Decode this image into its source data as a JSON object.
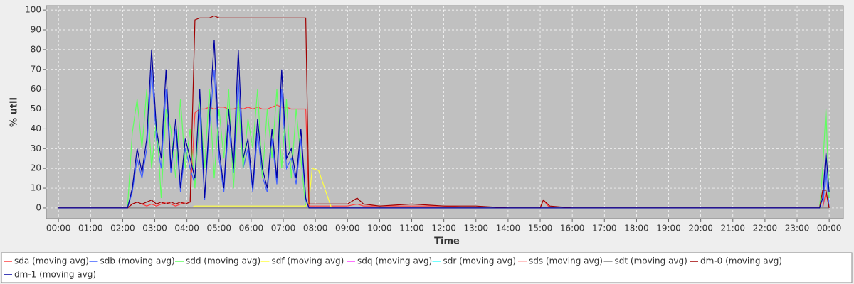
{
  "chart_data": {
    "type": "line",
    "xlabel": "Time",
    "ylabel": "% util",
    "grid": true,
    "legend": "bottom",
    "background": "#c0c0c0",
    "xlim": [
      -0.38,
      24.44
    ],
    "ylim": [
      -5.4,
      102.2
    ],
    "xticks": [
      {
        "value": 0,
        "label": "00:00"
      },
      {
        "value": 1,
        "label": "01:00"
      },
      {
        "value": 2,
        "label": "02:00"
      },
      {
        "value": 3,
        "label": "03:00"
      },
      {
        "value": 4,
        "label": "04:00"
      },
      {
        "value": 5,
        "label": "05:00"
      },
      {
        "value": 6,
        "label": "06:00"
      },
      {
        "value": 7,
        "label": "07:00"
      },
      {
        "value": 8,
        "label": "08:00"
      },
      {
        "value": 9,
        "label": "09:00"
      },
      {
        "value": 10,
        "label": "10:00"
      },
      {
        "value": 11,
        "label": "11:00"
      },
      {
        "value": 12,
        "label": "12:00"
      },
      {
        "value": 13,
        "label": "13:00"
      },
      {
        "value": 14,
        "label": "14:00"
      },
      {
        "value": 15,
        "label": "15:00"
      },
      {
        "value": 16,
        "label": "16:00"
      },
      {
        "value": 17,
        "label": "17:00"
      },
      {
        "value": 18,
        "label": "18:00"
      },
      {
        "value": 19,
        "label": "19:00"
      },
      {
        "value": 20,
        "label": "20:00"
      },
      {
        "value": 21,
        "label": "21:00"
      },
      {
        "value": 22,
        "label": "22:00"
      },
      {
        "value": 23,
        "label": "23:00"
      },
      {
        "value": 24,
        "label": "00:00"
      }
    ],
    "yticks": [
      0,
      10,
      20,
      30,
      40,
      50,
      60,
      70,
      80,
      90,
      100
    ],
    "x": [
      0,
      1,
      2,
      2.15,
      2.3,
      2.45,
      2.6,
      2.75,
      2.9,
      3.05,
      3.2,
      3.35,
      3.5,
      3.65,
      3.8,
      3.95,
      4.1,
      4.25,
      4.4,
      4.55,
      4.7,
      4.85,
      5,
      5.15,
      5.3,
      5.45,
      5.6,
      5.75,
      5.9,
      6.05,
      6.2,
      6.35,
      6.5,
      6.65,
      6.8,
      6.95,
      7.1,
      7.25,
      7.4,
      7.55,
      7.7,
      7.8,
      7.9,
      8.1,
      8.5,
      9,
      9.3,
      9.5,
      10,
      11,
      12,
      13,
      14,
      15,
      15.1,
      15.3,
      16,
      17,
      18,
      19,
      20,
      21,
      22,
      23,
      23.7,
      23.8,
      23.9,
      24
    ],
    "series": [
      {
        "name": "sda (moving avg)",
        "color": "#ff4040",
        "values": [
          0,
          0,
          0,
          0,
          2,
          3,
          2,
          1,
          2,
          1,
          2,
          3,
          2,
          1,
          2,
          3,
          3,
          48,
          50,
          50,
          51,
          50,
          51,
          51,
          50,
          50,
          51,
          50,
          51,
          50,
          51,
          50,
          50,
          51,
          52,
          51,
          51,
          50,
          50,
          50,
          50,
          1,
          1,
          1,
          1,
          1,
          2,
          1,
          1,
          1,
          1,
          0,
          0,
          0,
          4,
          0,
          0,
          0,
          0,
          0,
          0,
          0,
          0,
          0,
          0,
          0,
          8,
          0
        ]
      },
      {
        "name": "sdb (moving avg)",
        "color": "#4060ff",
        "values": [
          0,
          0,
          0,
          0,
          8,
          25,
          15,
          30,
          70,
          35,
          20,
          60,
          18,
          40,
          8,
          30,
          20,
          12,
          50,
          4,
          40,
          70,
          25,
          8,
          42,
          18,
          65,
          20,
          30,
          8,
          38,
          16,
          8,
          35,
          12,
          60,
          20,
          25,
          12,
          35,
          4,
          0,
          0,
          0,
          0,
          0,
          0,
          0,
          0,
          0,
          0,
          0,
          0,
          0,
          0,
          0,
          0,
          0,
          0,
          0,
          0,
          0,
          0,
          0,
          0,
          0,
          20,
          0
        ]
      },
      {
        "name": "sdd (moving avg)",
        "color": "#60ff60",
        "values": [
          0,
          0,
          0,
          0,
          38,
          55,
          30,
          60,
          20,
          45,
          5,
          50,
          40,
          15,
          55,
          20,
          40,
          10,
          55,
          20,
          60,
          15,
          50,
          25,
          60,
          10,
          55,
          20,
          45,
          30,
          60,
          15,
          50,
          25,
          60,
          20,
          55,
          15,
          50,
          25,
          0,
          0,
          0,
          0,
          0,
          0,
          0,
          0,
          0,
          0,
          0,
          0,
          0,
          0,
          0,
          0,
          0,
          0,
          0,
          0,
          0,
          0,
          0,
          0,
          0,
          20,
          50,
          5
        ]
      },
      {
        "name": "sdf (moving avg)",
        "color": "#ffff40",
        "values": [
          0,
          0,
          0,
          0,
          0,
          0,
          0,
          0,
          0,
          0,
          0,
          0,
          0,
          0,
          0,
          0,
          0,
          1,
          1,
          1,
          1,
          1,
          1,
          1,
          1,
          1,
          1,
          1,
          1,
          1,
          1,
          1,
          1,
          1,
          1,
          1,
          1,
          1,
          1,
          1,
          1,
          3,
          20,
          19,
          0,
          0,
          0,
          0,
          0,
          0,
          0,
          0,
          0,
          0,
          0,
          0,
          0,
          0,
          0,
          0,
          0,
          0,
          0,
          0,
          0,
          0,
          0,
          0
        ]
      },
      {
        "name": "sdq (moving avg)",
        "color": "#ff40ff",
        "values": [
          0,
          0,
          0,
          0,
          0,
          0,
          0,
          0,
          0,
          0,
          0,
          0,
          0,
          0,
          0,
          0,
          0,
          0,
          0,
          0,
          0,
          0,
          0,
          0,
          0,
          0,
          0,
          0,
          0,
          0,
          0,
          0,
          0,
          0,
          0,
          0,
          0,
          0,
          0,
          0,
          0,
          0,
          0,
          0,
          0,
          0,
          0,
          0,
          0,
          0,
          0,
          0,
          0,
          0,
          0,
          0,
          0,
          0,
          0,
          0,
          0,
          0,
          0,
          0,
          0,
          0,
          0,
          0
        ]
      },
      {
        "name": "sdr (moving avg)",
        "color": "#40ffff",
        "values": [
          0,
          0,
          0,
          0,
          0,
          0,
          0,
          0,
          0,
          0,
          0,
          0,
          0,
          0,
          0,
          0,
          0,
          0,
          0,
          0,
          0,
          0,
          0,
          0,
          0,
          0,
          0,
          0,
          0,
          0,
          0,
          0,
          0,
          0,
          0,
          0,
          0,
          0,
          0,
          0,
          0,
          0,
          0,
          0,
          0,
          0,
          0,
          0,
          0,
          0,
          0,
          0,
          0,
          0,
          0,
          0,
          0,
          0,
          0,
          0,
          0,
          0,
          0,
          0,
          0,
          0,
          0,
          0
        ]
      },
      {
        "name": "sds (moving avg)",
        "color": "#ffb0b0",
        "values": [
          0,
          0,
          0,
          0,
          0,
          0,
          0,
          0,
          0,
          0,
          0,
          0,
          0,
          0,
          0,
          0,
          0,
          0,
          0,
          0,
          0,
          0,
          0,
          0,
          0,
          0,
          0,
          0,
          0,
          0,
          0,
          0,
          0,
          0,
          0,
          0,
          0,
          0,
          0,
          0,
          0,
          0,
          0,
          0,
          0,
          0,
          0,
          0,
          0,
          0,
          0,
          0,
          0,
          0,
          0,
          0,
          0,
          0,
          0,
          0,
          0,
          0,
          0,
          0,
          0,
          0,
          0,
          0
        ]
      },
      {
        "name": "sdt (moving avg)",
        "color": "#808080",
        "values": [
          0,
          0,
          0,
          0,
          0,
          0,
          0,
          0,
          0,
          0,
          0,
          0,
          0,
          0,
          0,
          0,
          0,
          0,
          0,
          0,
          0,
          0,
          0,
          0,
          0,
          0,
          0,
          0,
          0,
          0,
          0,
          0,
          0,
          0,
          0,
          0,
          0,
          0,
          0,
          0,
          0,
          0,
          0,
          0,
          0,
          0,
          0,
          0,
          0,
          0,
          0,
          0,
          0,
          0,
          0,
          0,
          0,
          0,
          0,
          0,
          0,
          0,
          0,
          0,
          0,
          0,
          0,
          0
        ]
      },
      {
        "name": "dm-0 (moving avg)",
        "color": "#a00000",
        "values": [
          0,
          0,
          0,
          0,
          2,
          3,
          2,
          3,
          4,
          2,
          3,
          2,
          3,
          2,
          3,
          2,
          3,
          95,
          96,
          96,
          96,
          97,
          96,
          96,
          96,
          96,
          96,
          96,
          96,
          96,
          96,
          96,
          96,
          96,
          96,
          96,
          96,
          96,
          96,
          96,
          96,
          2,
          2,
          2,
          2,
          2,
          5,
          2,
          1,
          2,
          1,
          1,
          0,
          0,
          4,
          1,
          0,
          0,
          0,
          0,
          0,
          0,
          0,
          0,
          0,
          9,
          9,
          0
        ]
      },
      {
        "name": "dm-1 (moving avg)",
        "color": "#0000a0",
        "values": [
          0,
          0,
          0,
          0,
          10,
          30,
          18,
          35,
          80,
          40,
          25,
          70,
          20,
          45,
          10,
          35,
          25,
          15,
          60,
          5,
          45,
          85,
          30,
          10,
          50,
          20,
          80,
          25,
          35,
          10,
          45,
          20,
          10,
          40,
          15,
          70,
          25,
          30,
          15,
          40,
          5,
          0,
          0,
          0,
          0,
          0,
          0,
          0,
          0,
          0,
          0,
          0,
          0,
          0,
          0,
          0,
          0,
          0,
          0,
          0,
          0,
          0,
          0,
          0,
          0,
          5,
          28,
          8
        ]
      }
    ]
  }
}
